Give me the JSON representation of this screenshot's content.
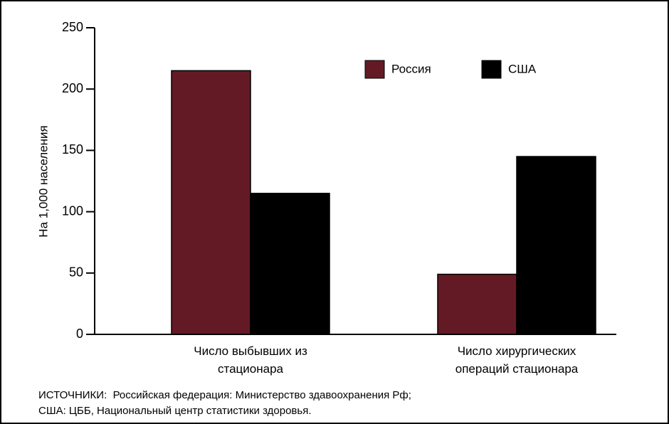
{
  "chart_data": {
    "type": "bar",
    "y_label": "На 1,000 населения",
    "categories": [
      "Число выбывших из стационара",
      "Число хирургических операций стационара"
    ],
    "series": [
      {
        "name": "Россия",
        "color": "#641a24",
        "values": [
          215,
          49
        ]
      },
      {
        "name": "США",
        "color": "#000000",
        "values": [
          115,
          145
        ]
      }
    ],
    "ylim": [
      0,
      250
    ],
    "yticks": [
      0,
      50,
      100,
      150,
      200,
      250
    ],
    "source": [
      "ИСТОЧНИКИ:  Российская федерация: Министерство здавоохранения Рф;",
      "США: ЦББ, Национальный центр статистики здоровья."
    ]
  }
}
